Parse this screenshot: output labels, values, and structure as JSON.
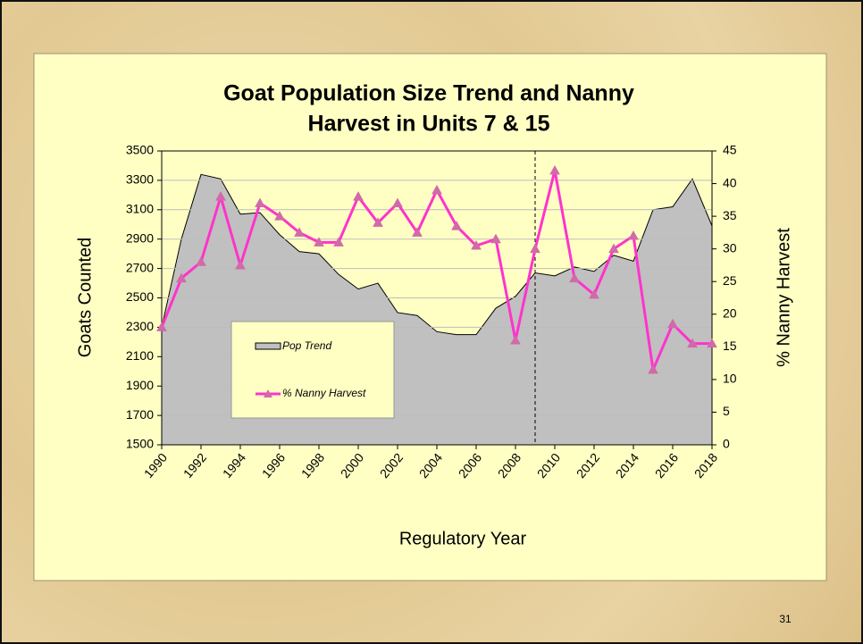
{
  "chart_data": {
    "type": "area_line",
    "title": [
      "Goat Population Size Trend and Nanny",
      "Harvest in Units 7 & 15"
    ],
    "x_label": "Regulatory Year",
    "y_label": "Goats Counted",
    "y2_label": "% Nanny Harvest",
    "x": [
      1990,
      1991,
      1992,
      1993,
      1994,
      1995,
      1996,
      1997,
      1998,
      1999,
      2000,
      2001,
      2002,
      2003,
      2004,
      2005,
      2006,
      2007,
      2008,
      2009,
      2010,
      2011,
      2012,
      2013,
      2014,
      2015,
      2016,
      2017,
      2018
    ],
    "xlim": [
      1990,
      2018
    ],
    "xticks": [
      1990,
      1992,
      1994,
      1996,
      1998,
      2000,
      2002,
      2004,
      2006,
      2008,
      2010,
      2012,
      2014,
      2016,
      2018
    ],
    "ylim": [
      1500,
      3500
    ],
    "yticks": [
      1500,
      1700,
      1900,
      2100,
      2300,
      2500,
      2700,
      2900,
      3100,
      3300,
      3500
    ],
    "y2lim": [
      0,
      45
    ],
    "y2ticks": [
      0,
      5,
      10,
      15,
      20,
      25,
      30,
      35,
      40,
      45
    ],
    "grid": true,
    "reference_line_x": 2009,
    "series": [
      {
        "name": "Pop Trend",
        "kind": "area",
        "color": "#c0c0c0",
        "values": [
          2300,
          2900,
          3340,
          3310,
          3070,
          3080,
          2930,
          2815,
          2800,
          2660,
          2560,
          2600,
          2400,
          2380,
          2270,
          2250,
          2250,
          2430,
          2510,
          2670,
          2650,
          2710,
          2680,
          2790,
          2750,
          3100,
          3120,
          3310,
          2990
        ]
      },
      {
        "name": "% Nanny Harvest",
        "kind": "line",
        "axis": "y2",
        "color": "#ff33cc",
        "marker_color": "#d06aa8",
        "values": [
          18,
          25.5,
          28,
          38,
          27.5,
          37,
          35,
          32.5,
          31,
          31,
          38,
          34,
          37,
          32.5,
          39,
          33.5,
          30.5,
          31.5,
          16,
          30,
          42,
          25.5,
          23,
          30,
          32,
          11.5,
          18.5,
          15.5,
          15.5
        ]
      }
    ]
  },
  "page_number": "31"
}
